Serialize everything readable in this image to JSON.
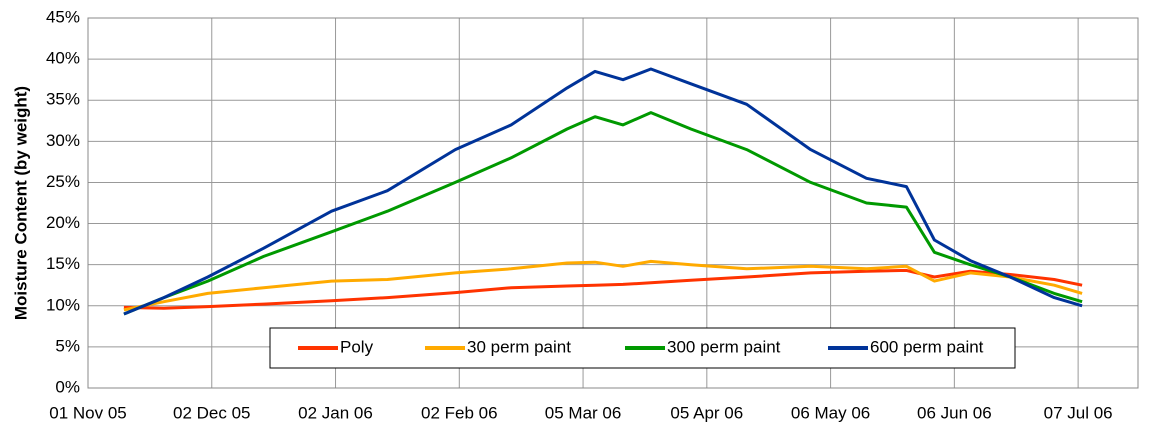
{
  "chart_data": {
    "type": "line",
    "y_label": "Moisture Content (by weight)",
    "x": [
      "2005-11-10",
      "2005-11-20",
      "2005-12-01",
      "2005-12-15",
      "2006-01-01",
      "2006-01-15",
      "2006-02-01",
      "2006-02-15",
      "2006-03-01",
      "2006-03-08",
      "2006-03-15",
      "2006-03-22",
      "2006-04-01",
      "2006-04-15",
      "2006-05-01",
      "2006-05-15",
      "2006-05-25",
      "2006-06-01",
      "2006-06-10",
      "2006-06-20",
      "2006-07-01",
      "2006-07-08"
    ],
    "series": [
      {
        "name": "Poly",
        "color": "#ff3300",
        "values": [
          9.8,
          9.7,
          9.9,
          10.2,
          10.6,
          11,
          11.6,
          12.2,
          12.4,
          12.5,
          12.6,
          12.8,
          13.1,
          13.5,
          14,
          14.2,
          14.3,
          13.5,
          14.2,
          13.8,
          13.2,
          12.5
        ]
      },
      {
        "name": "30 perm paint",
        "color": "#ffaa00",
        "values": [
          9.5,
          10.5,
          11.5,
          12.2,
          13,
          13.2,
          14,
          14.5,
          15.2,
          15.3,
          14.8,
          15.4,
          15,
          14.5,
          14.8,
          14.5,
          14.8,
          13,
          14,
          13.5,
          12.5,
          11.5
        ]
      },
      {
        "name": "300 perm paint",
        "color": "#009900",
        "values": [
          9,
          11,
          13,
          16,
          19,
          21.5,
          25,
          28,
          31.5,
          33,
          32,
          33.5,
          31.5,
          29,
          25,
          22.5,
          22,
          16.5,
          15,
          13.5,
          11.5,
          10.5
        ]
      },
      {
        "name": "600 perm paint",
        "color": "#003399",
        "values": [
          9,
          11,
          13.5,
          17,
          21.5,
          24,
          29,
          32,
          36.5,
          38.5,
          37.5,
          38.8,
          37,
          34.5,
          29,
          25.5,
          24.5,
          18,
          15.5,
          13.5,
          11,
          10
        ]
      }
    ],
    "xlim": [
      "2005-11-01",
      "2006-07-22"
    ],
    "xticks": [
      {
        "value": "2005-11-01",
        "label": "01 Nov 05"
      },
      {
        "value": "2005-12-02",
        "label": "02 Dec 05"
      },
      {
        "value": "2006-01-02",
        "label": "02 Jan 06"
      },
      {
        "value": "2006-02-02",
        "label": "02 Feb 06"
      },
      {
        "value": "2006-03-05",
        "label": "05 Mar 06"
      },
      {
        "value": "2006-04-05",
        "label": "05 Apr 06"
      },
      {
        "value": "2006-05-06",
        "label": "06 May 06"
      },
      {
        "value": "2006-06-06",
        "label": "06 Jun 06"
      },
      {
        "value": "2006-07-07",
        "label": "07 Jul 06"
      }
    ],
    "ylim": [
      0,
      45
    ],
    "yticks": [
      {
        "value": 0,
        "label": "0%"
      },
      {
        "value": 5,
        "label": "5%"
      },
      {
        "value": 10,
        "label": "10%"
      },
      {
        "value": 15,
        "label": "15%"
      },
      {
        "value": 20,
        "label": "20%"
      },
      {
        "value": 25,
        "label": "25%"
      },
      {
        "value": 30,
        "label": "30%"
      },
      {
        "value": 35,
        "label": "35%"
      },
      {
        "value": 40,
        "label": "40%"
      },
      {
        "value": 45,
        "label": "45%"
      }
    ],
    "grid": true,
    "legend": "bottom"
  }
}
